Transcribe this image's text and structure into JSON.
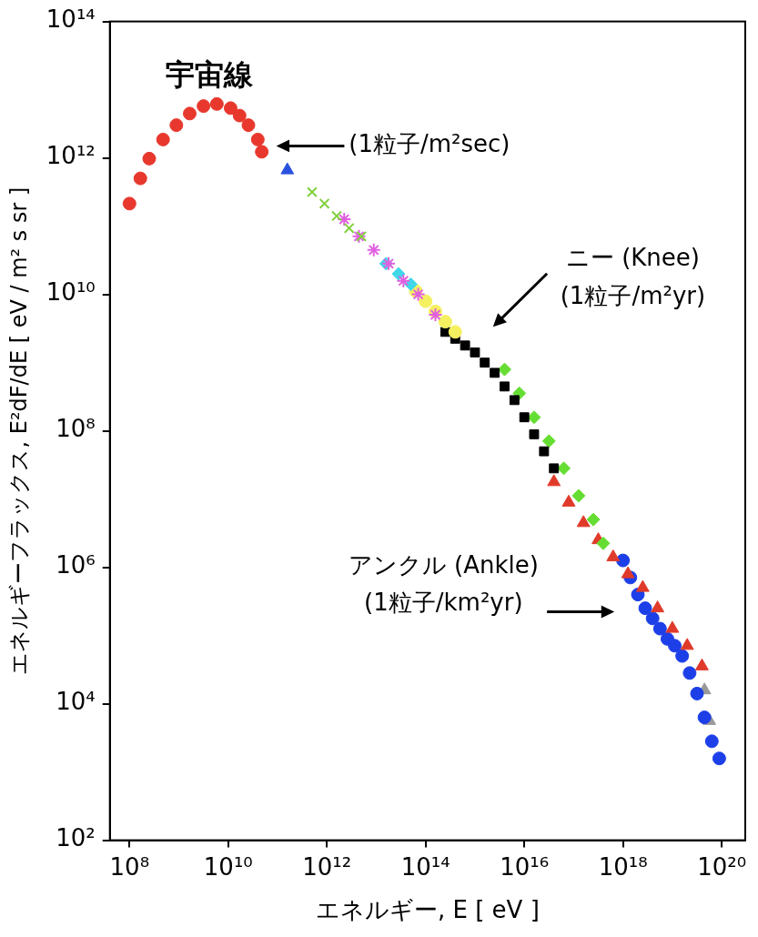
{
  "chart_data": {
    "type": "scatter",
    "title": "宇宙線",
    "x_label": "エネルギー, E [ eV ]",
    "y_label": "エネルギーフラックス, E²dF/dE [ eV / m² s sr ]",
    "log": true,
    "grid": false,
    "xlim": [
      40000000.0,
      3e+20
    ],
    "ylim": [
      100,
      100000000000000.0
    ],
    "xticks": [
      {
        "value": 100000000.0,
        "label": "10⁸"
      },
      {
        "value": 10000000000.0,
        "label": "10¹⁰"
      },
      {
        "value": 1000000000000.0,
        "label": "10¹²"
      },
      {
        "value": 100000000000000.0,
        "label": "10¹⁴"
      },
      {
        "value": 1e+16,
        "label": "10¹⁶"
      },
      {
        "value": 1e+18,
        "label": "10¹⁸"
      },
      {
        "value": 1e+20,
        "label": "10²⁰"
      }
    ],
    "yticks": [
      {
        "value": 100,
        "label": "10²"
      },
      {
        "value": 10000,
        "label": "10⁴"
      },
      {
        "value": 1000000,
        "label": "10⁶"
      },
      {
        "value": 100000000.0,
        "label": "10⁸"
      },
      {
        "value": 10000000000.0,
        "label": "10¹⁰"
      },
      {
        "value": 1000000000000.0,
        "label": "10¹²"
      },
      {
        "value": 100000000000000.0,
        "label": "10¹⁴"
      }
    ],
    "annotations": [
      {
        "text": "(1粒子/m²sec)"
      },
      {
        "text": "ニー (Knee)\n(1粒子/m²yr)"
      },
      {
        "text": "アンクル (Ankle)\n(1粒子/km²yr)"
      }
    ],
    "series": [
      {
        "color": "#e8382e",
        "marker": "circle",
        "x": [
          100000000.0,
          166000000.0,
          251000000.0,
          479000000.0,
          891000000.0,
          1660000000.0,
          3160000000.0,
          5890000000.0,
          11200000000.0,
          17000000000.0,
          25700000000.0,
          39800000000.0,
          47900000000.0
        ],
        "values": [
          214000000000.0,
          501000000000.0,
          977000000000.0,
          1860000000000.0,
          3020000000000.0,
          4470000000000.0,
          5750000000000.0,
          6170000000000.0,
          5370000000000.0,
          4170000000000.0,
          3020000000000.0,
          1860000000000.0,
          1230000000000.0
        ]
      },
      {
        "color": "#2a52e0",
        "marker": "triangle",
        "x": [
          158000000000.0
        ],
        "values": [
          661000000000.0
        ]
      },
      {
        "color": "#7fd13b",
        "marker": "cross",
        "x": [
          501000000000.0,
          891000000000.0,
          1580000000000.0,
          2820000000000.0,
          5010000000000.0
        ],
        "values": [
          316000000000.0,
          214000000000.0,
          141000000000.0,
          93300000000.0,
          70800000000.0
        ]
      },
      {
        "color": "#e060e0",
        "marker": "star",
        "x": [
          2240000000000.0,
          4470000000000.0,
          8910000000000.0,
          17800000000000.0,
          35500000000000.0,
          70800000000000.0,
          158000000000000.0
        ],
        "values": [
          126000000000.0,
          70800000000.0,
          44700000000.0,
          28200000000.0,
          15800000000.0,
          10000000000.0,
          5010000000.0
        ]
      },
      {
        "color": "#40d8e8",
        "marker": "diamond",
        "x": [
          15800000000000.0,
          28200000000000.0,
          50100000000000.0
        ],
        "values": [
          28200000000.0,
          20000000000.0,
          14100000000.0
        ]
      },
      {
        "color": "#f5f060",
        "marker": "circle",
        "x": [
          63100000000000.0,
          100000000000000.0,
          158000000000000.0,
          251000000000000.0,
          398000000000000.0
        ],
        "values": [
          11200000000.0,
          7940000000.0,
          5620000000.0,
          3980000000.0,
          2820000000.0
        ]
      },
      {
        "color": "#000000",
        "marker": "square",
        "x": [
          251000000000000.0,
          398000000000000.0,
          631000000000000.0,
          1000000000000000.0,
          1580000000000000.0,
          2510000000000000.0,
          3980000000000000.0,
          6310000000000000.0,
          1e+16,
          1.58e+16,
          2.51e+16,
          3.98e+16
        ],
        "values": [
          2820000000.0,
          2240000000.0,
          1780000000.0,
          1410000000.0,
          1000000000.0,
          708000000.0,
          447000000.0,
          282000000.0,
          158000000.0,
          89100000.0,
          50100000.0,
          28200000.0
        ]
      },
      {
        "color": "#66dd33",
        "marker": "diamond",
        "x": [
          3980000000000000.0,
          7940000000000000.0,
          1.58e+16,
          3.16e+16,
          6.31e+16,
          1.26e+17,
          2.51e+17,
          3.98e+17
        ],
        "values": [
          794000000.0,
          355000000.0,
          158000000.0,
          70800000.0,
          28200000.0,
          11200000.0,
          5010000.0,
          2240000.0
        ]
      },
      {
        "color": "#e03a2a",
        "marker": "triangle",
        "x": [
          3.98e+16,
          7.94e+16,
          1.58e+17,
          3.16e+17,
          6.31e+17,
          1.26e+18,
          2.51e+18,
          5.01e+18,
          1e+19,
          2e+19,
          3.98e+19
        ],
        "values": [
          17800000.0,
          8910000.0,
          4470000.0,
          2510000.0,
          1410000.0,
          794000.0,
          501000.0,
          251000.0,
          126000.0,
          70800.0,
          35500.0
        ]
      },
      {
        "color": "#1d3fe8",
        "marker": "circle",
        "x": [
          1e+18,
          1.41e+18,
          2e+18,
          2.82e+18,
          3.98e+18,
          5.62e+18,
          7.94e+18,
          1.12e+19,
          1.58e+19,
          2.24e+19,
          3.16e+19,
          4.47e+19,
          6.31e+19,
          8.91e+19
        ],
        "values": [
          1260000.0,
          708000.0,
          398000.0,
          251000.0,
          178000.0,
          126000.0,
          89100.0,
          70800.0,
          50100.0,
          28200.0,
          14100.0,
          6310.0,
          2820.0,
          1580.0
        ]
      },
      {
        "color": "#999999",
        "marker": "triangle",
        "x": [
          4.47e+19,
          5.62e+19
        ],
        "values": [
          15800.0,
          5620.0
        ]
      }
    ]
  }
}
